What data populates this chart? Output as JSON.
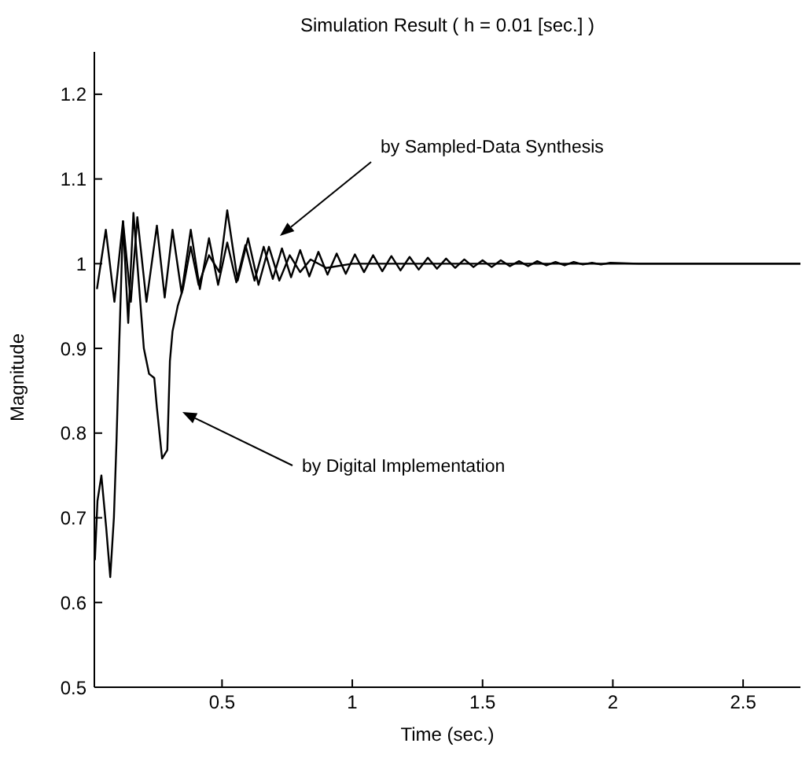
{
  "chart_data": {
    "type": "line",
    "title": "Simulation Result ( h = 0.01 [sec.] )",
    "xlabel": "Time (sec.)",
    "ylabel": "Magnitude",
    "xlim": [
      0.01,
      2.72
    ],
    "xticks": [
      0.5,
      1,
      1.5,
      2,
      2.5
    ],
    "ylim": [
      0.5,
      1.25
    ],
    "yticks": [
      0.5,
      0.6,
      0.7,
      0.8,
      0.9,
      1,
      1.1,
      1.2
    ],
    "marker": "none",
    "series": [
      {
        "color": "#000000",
        "x": [
          0.02,
          0.054,
          0.087,
          0.12,
          0.15,
          0.175,
          0.21,
          0.25,
          0.28,
          0.31,
          0.345,
          0.38,
          0.415,
          0.45,
          0.485,
          0.52,
          0.555,
          0.59,
          0.625,
          0.66,
          0.695,
          0.73,
          0.765,
          0.8,
          0.835,
          0.87,
          0.905,
          0.94,
          0.975,
          1.01,
          1.045,
          1.08,
          1.115,
          1.15,
          1.185,
          1.22,
          1.255,
          1.29,
          1.325,
          1.36,
          1.395,
          1.43,
          1.465,
          1.5,
          1.535,
          1.57,
          1.605,
          1.64,
          1.675,
          1.71,
          1.745,
          1.78,
          1.815,
          1.85,
          1.885,
          1.92,
          1.955,
          1.99,
          2.1,
          2.72
        ],
        "values": [
          0.97,
          1.04,
          0.955,
          1.05,
          0.955,
          1.055,
          0.955,
          1.045,
          0.96,
          1.04,
          0.965,
          1.04,
          0.97,
          1.03,
          0.975,
          1.025,
          0.978,
          1.022,
          0.98,
          1.02,
          0.982,
          1.018,
          0.984,
          1.016,
          0.985,
          1.014,
          0.987,
          1.012,
          0.988,
          1.011,
          0.99,
          1.01,
          0.991,
          1.009,
          0.992,
          1.008,
          0.993,
          1.007,
          0.994,
          1.006,
          0.995,
          1.005,
          0.996,
          1.004,
          0.996,
          1.004,
          0.997,
          1.003,
          0.997,
          1.003,
          0.998,
          1.002,
          0.998,
          1.002,
          0.999,
          1.001,
          0.999,
          1.001,
          1.0,
          1.0
        ]
      },
      {
        "color": "#000000",
        "x": [
          0.012,
          0.022,
          0.037,
          0.055,
          0.071,
          0.085,
          0.095,
          0.105,
          0.115,
          0.12,
          0.14,
          0.16,
          0.2,
          0.22,
          0.24,
          0.25,
          0.27,
          0.29,
          0.3,
          0.31,
          0.33,
          0.35,
          0.38,
          0.41,
          0.45,
          0.49,
          0.52,
          0.56,
          0.6,
          0.64,
          0.68,
          0.72,
          0.76,
          0.8,
          0.84,
          0.9,
          1.0,
          2.72
        ],
        "values": [
          0.65,
          0.72,
          0.75,
          0.69,
          0.63,
          0.7,
          0.79,
          0.9,
          1.0,
          1.05,
          0.93,
          1.06,
          0.9,
          0.87,
          0.865,
          0.83,
          0.77,
          0.78,
          0.885,
          0.92,
          0.95,
          0.97,
          1.02,
          0.975,
          1.01,
          0.99,
          1.063,
          0.98,
          1.03,
          0.975,
          1.02,
          0.98,
          1.01,
          0.99,
          1.005,
          0.995,
          1.0,
          1.0
        ]
      }
    ],
    "annotations": [
      "by Sampled-Data Synthesis",
      "by Digital Implementation"
    ]
  }
}
